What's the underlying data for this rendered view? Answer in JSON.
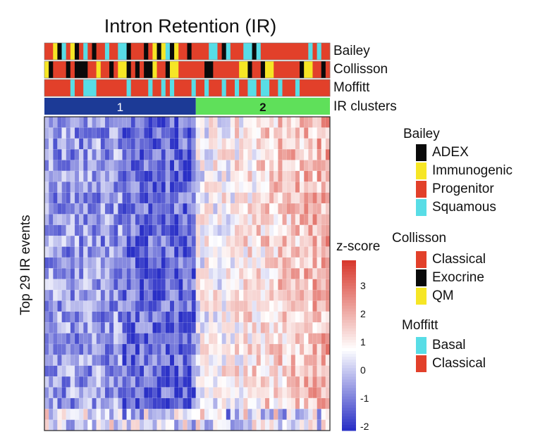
{
  "chart_data": {
    "type": "heatmap",
    "title": "Intron Retention (IR)",
    "ylabel": "Top 29 IR events",
    "annotation_tracks": [
      {
        "name": "Bailey"
      },
      {
        "name": "Collisson"
      },
      {
        "name": "Moffitt"
      },
      {
        "name": "IR clusters",
        "clusters": [
          "1",
          "2"
        ]
      }
    ],
    "n_samples": 66,
    "n_rows": 29,
    "cluster_split_fraction": 0.53,
    "legend": [
      {
        "title": "Bailey",
        "items": [
          {
            "label": "ADEX",
            "color": "#0a0a0a"
          },
          {
            "label": "Immunogenic",
            "color": "#f6e625"
          },
          {
            "label": "Progenitor",
            "color": "#e2402a"
          },
          {
            "label": "Squamous",
            "color": "#58dde6"
          }
        ]
      },
      {
        "title": "Collisson",
        "items": [
          {
            "label": "Classical",
            "color": "#e2402a"
          },
          {
            "label": "Exocrine",
            "color": "#0a0a0a"
          },
          {
            "label": "QM",
            "color": "#f6e625"
          }
        ]
      },
      {
        "title": "Moffitt",
        "items": [
          {
            "label": "Basal",
            "color": "#58dde6"
          },
          {
            "label": "Classical",
            "color": "#e2402a"
          }
        ]
      }
    ],
    "colorbar": {
      "title": "z-score",
      "ticks": [
        "3",
        "2",
        "1",
        "0",
        "-1",
        "-2"
      ],
      "range": [
        -2.3,
        3.8
      ],
      "low_color": "#2a30c6",
      "mid_color": "#ffffff",
      "high_color": "#d83a2e"
    },
    "cluster_colors": {
      "1": "#1c3a96",
      "2": "#5fe05a"
    }
  }
}
